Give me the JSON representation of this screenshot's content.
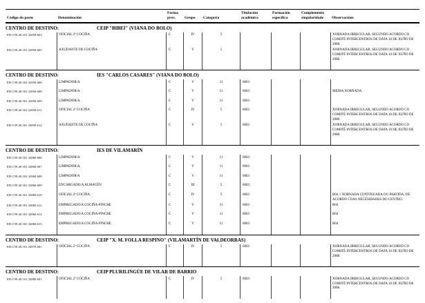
{
  "header": {
    "columns": [
      "Código do posto",
      "Denominación",
      "Forma prov.",
      "Grupo",
      "Categoría",
      "Titulación académica",
      "Formación específica",
      "Complemento singularidade",
      "Observacións"
    ]
  },
  "section_label": "CENTRO DE DESTINO:",
  "sections": [
    {
      "name": "CEIP \"BIBEI\" (VIANA DO BOLO)",
      "rows": [
        {
          "code": "ED.C99.40.101.32850.603",
          "denomination": "OFICIAL 2ª COCIÑA",
          "forma": "C",
          "grupo": "IV",
          "categoria": "5",
          "titulacion": "",
          "formacion": "",
          "complemento": "",
          "observacions": "XORNADA IRREGULAR, SEGUNDO ACORDO CO COMITÉ INTERCENTROS DE DATA 10 DE XUÑO DE 2008."
        },
        {
          "code": "ED.C99.40.101.32850.605",
          "denomination": "AXUDANTE DE COCIÑA",
          "forma": "C",
          "grupo": "V",
          "categoria": "1",
          "titulacion": "",
          "formacion": "",
          "complemento": "",
          "observacions": "XORNADA IRREGULAR, SEGUNDO ACORDO CO COMITÉ INTERCENTROS DE DATA 10 DE XUÑO DE 2008."
        }
      ]
    },
    {
      "name": "IES \"CARLOS CASARES\" (VIANA DO BOLO)",
      "rows": [
        {
          "code": "ED.C99.40.301.32850.606",
          "denomination": "LIMPADOR/A",
          "forma": "C",
          "grupo": "V",
          "categoria": "11",
          "titulacion": "6063",
          "formacion": "",
          "complemento": "",
          "observacions": ""
        },
        {
          "code": "ED.C99.40.301.32850.608",
          "denomination": "LIMPADOR/A",
          "forma": "C",
          "grupo": "V",
          "categoria": "11",
          "titulacion": "6063",
          "formacion": "",
          "complemento": "",
          "observacions": "MEDIA XORNADA"
        },
        {
          "code": "ED.C99.40.301.32850.609",
          "denomination": "LIMPADOR/A",
          "forma": "C",
          "grupo": "V",
          "categoria": "11",
          "titulacion": "6063",
          "formacion": "",
          "complemento": "",
          "observacions": ""
        },
        {
          "code": "ED.C99.40.301.32850.611",
          "denomination": "OFICIAL 2ª COCIÑA",
          "forma": "C",
          "grupo": "IV",
          "categoria": "5",
          "titulacion": "6063",
          "formacion": "",
          "complemento": "",
          "observacions": "XORNADA IRREGULAR, SEGUNDO ACORDO CO COMITÉ INTERCENTROS DE DATA 10 DE XUÑO DE 2008."
        },
        {
          "code": "ED.C99.40.301.32850.612",
          "denomination": "AXUDANTE DE COCIÑA",
          "forma": "C",
          "grupo": "V",
          "categoria": "1",
          "titulacion": "6063",
          "formacion": "",
          "complemento": "",
          "observacions": "XORNADA IRREGULAR, SEGUNDO ACORDO CO COMITÉ INTERCENTROS DE DATA 10 DE XUÑO DE 2008."
        }
      ]
    },
    {
      "name": "IES DE VILAMARÍN",
      "rows": [
        {
          "code": "ED.C99.40.301.32860.606",
          "denomination": "LIMPADOR/A",
          "forma": "C",
          "grupo": "V",
          "categoria": "11",
          "titulacion": "6063",
          "formacion": "",
          "complemento": "",
          "observacions": ""
        },
        {
          "code": "ED.C99.40.301.32860.607",
          "denomination": "LIMPADOR/A",
          "forma": "C",
          "grupo": "V",
          "categoria": "11",
          "titulacion": "6063",
          "formacion": "",
          "complemento": "",
          "observacions": ""
        },
        {
          "code": "ED.C99.40.301.32860.608",
          "denomination": "LIMPADOR/A",
          "forma": "C",
          "grupo": "V",
          "categoria": "11",
          "titulacion": "6063",
          "formacion": "",
          "complemento": "",
          "observacions": ""
        },
        {
          "code": "ED.C99.40.301.32860.609",
          "denomination": "ENCARGADO/A ALMACÉN",
          "forma": "C",
          "grupo": "III",
          "categoria": "5",
          "titulacion": "6063",
          "formacion": "",
          "complemento": "",
          "observacions": ""
        },
        {
          "code": "ED.C99.40.301.32860.610",
          "denomination": "OFICIAL 2ª COCIÑA",
          "forma": "C",
          "grupo": "IV",
          "categoria": "5",
          "titulacion": "6063",
          "formacion": "",
          "complemento": "",
          "observacions": "B04 // XORNADA CONTINUADA OU PARTIDA, DE ACORDO COAS NECESIDADES DO CENTRO."
        },
        {
          "code": "ED.C99.40.301.32860.611",
          "denomination": "EMPREGADO/A COCIÑA-PINCHE",
          "forma": "C",
          "grupo": "V",
          "categoria": "11",
          "titulacion": "6063",
          "formacion": "",
          "complemento": "",
          "observacions": "B04"
        },
        {
          "code": "ED.C99.40.301.32860.612",
          "denomination": "EMPREGADO/A COCIÑA-PINCHE",
          "forma": "C",
          "grupo": "V",
          "categoria": "11",
          "titulacion": "6063",
          "formacion": "",
          "complemento": "",
          "observacions": "B04"
        },
        {
          "code": "ED.C99.40.301.32860.613",
          "denomination": "EMPREGADO/A COCIÑA-PINCHE",
          "forma": "C",
          "grupo": "V",
          "categoria": "11",
          "titulacion": "6063",
          "formacion": "",
          "complemento": "",
          "observacions": "B04"
        }
      ]
    },
    {
      "name": "CEIP \"X. M. FOLLA RESPINO\" (VILAMARTÍN DE VALDEORRAS)",
      "rows": [
        {
          "code": "ED.C99.40.101.32870.601",
          "denomination": "OFICIAL 2ª COCIÑA",
          "forma": "C",
          "grupo": "IV",
          "categoria": "5",
          "titulacion": "6063",
          "formacion": "",
          "complemento": "",
          "observacions": "XORNADA IRREGULAR, SEGUNDO ACORDO CO COMITÉ INTERCENTROS DE DATA 10 DE XUÑO DE 2008."
        }
      ]
    },
    {
      "name": "CEIP PLURILINGÜE DE VILAR DE BARRIO",
      "rows": [
        {
          "code": "ED.C99.40.101.32880.601",
          "denomination": "OFICIAL 2ª COCIÑA",
          "forma": "C",
          "grupo": "IV",
          "categoria": "5",
          "titulacion": "6063",
          "formacion": "",
          "complemento": "",
          "observacions": "XORNADA IRREGULAR, SEGUNDO ACORDO CO COMITÉ INTERCENTROS DE DATA 10 DE XUÑO DE 2008."
        }
      ]
    }
  ]
}
